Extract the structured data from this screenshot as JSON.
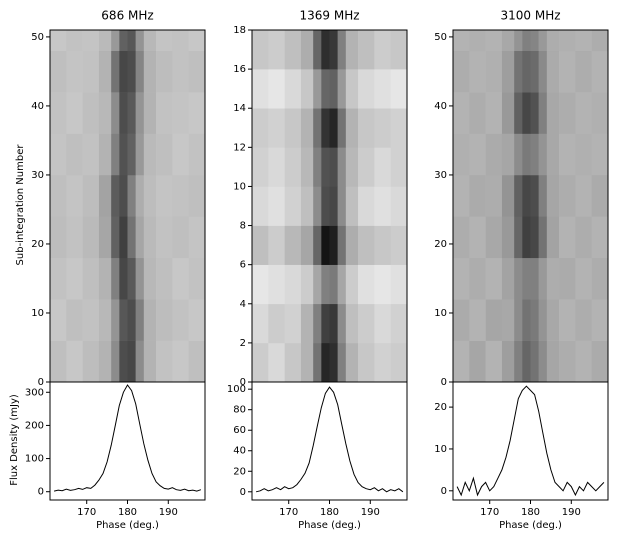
{
  "chart_data": [
    {
      "type": "heatmap",
      "title": "686 MHz",
      "ylabel": "Sub-integration Number",
      "x_edges": [
        161,
        165,
        169,
        173,
        176,
        178,
        180,
        182,
        184,
        187,
        191,
        195,
        199
      ],
      "y_edges": [
        0,
        6,
        12,
        18,
        24,
        30,
        36,
        42,
        48,
        51
      ],
      "values": [
        [
          0.25,
          0.22,
          0.26,
          0.3,
          0.45,
          0.7,
          0.72,
          0.45,
          0.3,
          0.24,
          0.22,
          0.25
        ],
        [
          0.22,
          0.25,
          0.24,
          0.28,
          0.42,
          0.66,
          0.7,
          0.5,
          0.3,
          0.26,
          0.24,
          0.22
        ],
        [
          0.24,
          0.22,
          0.25,
          0.3,
          0.5,
          0.72,
          0.65,
          0.42,
          0.28,
          0.25,
          0.22,
          0.24
        ],
        [
          0.26,
          0.24,
          0.27,
          0.35,
          0.62,
          0.75,
          0.55,
          0.35,
          0.27,
          0.24,
          0.25,
          0.23
        ],
        [
          0.25,
          0.23,
          0.26,
          0.36,
          0.64,
          0.7,
          0.5,
          0.32,
          0.26,
          0.23,
          0.24,
          0.25
        ],
        [
          0.23,
          0.25,
          0.24,
          0.3,
          0.5,
          0.68,
          0.62,
          0.4,
          0.27,
          0.25,
          0.22,
          0.24
        ],
        [
          0.24,
          0.22,
          0.25,
          0.28,
          0.45,
          0.7,
          0.65,
          0.42,
          0.3,
          0.24,
          0.23,
          0.22
        ],
        [
          0.25,
          0.23,
          0.24,
          0.3,
          0.55,
          0.72,
          0.7,
          0.48,
          0.3,
          0.26,
          0.24,
          0.25
        ],
        [
          0.22,
          0.24,
          0.23,
          0.27,
          0.4,
          0.62,
          0.66,
          0.42,
          0.28,
          0.23,
          0.24,
          0.22
        ]
      ],
      "xlim": [
        161,
        199
      ],
      "ylim": [
        0,
        51
      ],
      "yticks": [
        0,
        10,
        20,
        30,
        40,
        50
      ]
    },
    {
      "type": "line",
      "ylabel": "Flux Density (mJy)",
      "xlabel": "Phase (deg.)",
      "color": "#000000",
      "x": [
        162,
        163,
        164,
        165,
        166,
        167,
        168,
        169,
        170,
        171,
        172,
        173,
        174,
        175,
        176,
        177,
        178,
        179,
        180,
        181,
        182,
        183,
        184,
        185,
        186,
        187,
        188,
        189,
        190,
        191,
        192,
        193,
        194,
        195,
        196,
        197,
        198
      ],
      "values": [
        2,
        5,
        3,
        8,
        4,
        6,
        10,
        7,
        12,
        10,
        20,
        35,
        55,
        90,
        140,
        200,
        260,
        300,
        322,
        305,
        265,
        205,
        145,
        95,
        55,
        30,
        18,
        10,
        8,
        12,
        6,
        4,
        8,
        3,
        5,
        2,
        6
      ],
      "xlim": [
        161,
        199
      ],
      "ylim": [
        -25,
        331
      ],
      "xticks": [
        170,
        180,
        190
      ],
      "yticks": [
        0,
        100,
        200,
        300
      ]
    },
    {
      "type": "heatmap",
      "title": "1369 MHz",
      "x_edges": [
        161,
        165,
        169,
        173,
        176,
        178,
        180,
        182,
        184,
        187,
        191,
        195,
        199
      ],
      "y_edges": [
        0,
        2,
        4,
        6,
        8,
        10,
        12,
        14,
        16,
        18
      ],
      "values": [
        [
          0.2,
          0.15,
          0.22,
          0.3,
          0.55,
          0.85,
          0.82,
          0.5,
          0.3,
          0.22,
          0.18,
          0.2
        ],
        [
          0.15,
          0.2,
          0.18,
          0.3,
          0.5,
          0.75,
          0.78,
          0.45,
          0.25,
          0.2,
          0.15,
          0.18
        ],
        [
          0.1,
          0.12,
          0.15,
          0.2,
          0.35,
          0.5,
          0.52,
          0.35,
          0.2,
          0.12,
          0.1,
          0.12
        ],
        [
          0.25,
          0.2,
          0.28,
          0.35,
          0.6,
          0.92,
          0.88,
          0.55,
          0.32,
          0.25,
          0.22,
          0.2
        ],
        [
          0.15,
          0.12,
          0.18,
          0.25,
          0.45,
          0.7,
          0.72,
          0.45,
          0.25,
          0.15,
          0.12,
          0.15
        ],
        [
          0.18,
          0.15,
          0.2,
          0.28,
          0.5,
          0.68,
          0.7,
          0.45,
          0.28,
          0.2,
          0.15,
          0.18
        ],
        [
          0.2,
          0.18,
          0.22,
          0.3,
          0.55,
          0.8,
          0.85,
          0.55,
          0.3,
          0.22,
          0.2,
          0.18
        ],
        [
          0.12,
          0.1,
          0.15,
          0.22,
          0.4,
          0.6,
          0.62,
          0.4,
          0.22,
          0.15,
          0.12,
          0.1
        ],
        [
          0.22,
          0.2,
          0.25,
          0.32,
          0.6,
          0.82,
          0.78,
          0.5,
          0.3,
          0.25,
          0.2,
          0.22
        ]
      ],
      "xlim": [
        161,
        199
      ],
      "ylim": [
        0,
        18
      ],
      "yticks": [
        0,
        2,
        4,
        6,
        8,
        10,
        12,
        14,
        16,
        18
      ]
    },
    {
      "type": "line",
      "xlabel": "Phase (deg.)",
      "color": "#000000",
      "x": [
        162,
        163,
        164,
        165,
        166,
        167,
        168,
        169,
        170,
        171,
        172,
        173,
        174,
        175,
        176,
        177,
        178,
        179,
        180,
        181,
        182,
        183,
        184,
        185,
        186,
        187,
        188,
        189,
        190,
        191,
        192,
        193,
        194,
        195,
        196,
        197,
        198
      ],
      "values": [
        0,
        1,
        3,
        1,
        2,
        4,
        2,
        5,
        3,
        4,
        7,
        12,
        18,
        28,
        45,
        64,
        82,
        96,
        102,
        97,
        85,
        66,
        47,
        30,
        17,
        9,
        5,
        3,
        2,
        4,
        1,
        3,
        0,
        2,
        1,
        3,
        0
      ],
      "xlim": [
        161,
        199
      ],
      "ylim": [
        -8,
        107
      ],
      "xticks": [
        170,
        180,
        190
      ],
      "yticks": [
        0,
        20,
        40,
        60,
        80,
        100
      ]
    },
    {
      "type": "heatmap",
      "title": "3100 MHz",
      "x_edges": [
        161,
        165,
        169,
        173,
        176,
        178,
        180,
        182,
        184,
        187,
        191,
        195,
        199
      ],
      "y_edges": [
        0,
        6,
        12,
        18,
        24,
        30,
        36,
        42,
        48,
        51
      ],
      "values": [
        [
          0.3,
          0.35,
          0.3,
          0.38,
          0.5,
          0.6,
          0.55,
          0.45,
          0.35,
          0.32,
          0.3,
          0.33
        ],
        [
          0.33,
          0.3,
          0.35,
          0.34,
          0.45,
          0.55,
          0.52,
          0.42,
          0.34,
          0.3,
          0.32,
          0.3
        ],
        [
          0.3,
          0.32,
          0.3,
          0.36,
          0.45,
          0.5,
          0.5,
          0.4,
          0.32,
          0.33,
          0.3,
          0.32
        ],
        [
          0.32,
          0.3,
          0.34,
          0.4,
          0.6,
          0.75,
          0.72,
          0.55,
          0.36,
          0.3,
          0.32,
          0.3
        ],
        [
          0.3,
          0.33,
          0.32,
          0.42,
          0.62,
          0.72,
          0.7,
          0.5,
          0.35,
          0.32,
          0.3,
          0.33
        ],
        [
          0.31,
          0.3,
          0.33,
          0.35,
          0.45,
          0.52,
          0.5,
          0.42,
          0.34,
          0.3,
          0.31,
          0.3
        ],
        [
          0.3,
          0.32,
          0.3,
          0.4,
          0.62,
          0.72,
          0.68,
          0.5,
          0.34,
          0.32,
          0.3,
          0.31
        ],
        [
          0.32,
          0.3,
          0.31,
          0.38,
          0.55,
          0.6,
          0.58,
          0.46,
          0.33,
          0.3,
          0.32,
          0.3
        ],
        [
          0.3,
          0.31,
          0.3,
          0.34,
          0.42,
          0.5,
          0.48,
          0.4,
          0.32,
          0.31,
          0.3,
          0.32
        ]
      ],
      "xlim": [
        161,
        199
      ],
      "ylim": [
        0,
        51
      ],
      "yticks": [
        0,
        10,
        20,
        30,
        40,
        50
      ]
    },
    {
      "type": "line",
      "xlabel": "Phase (deg.)",
      "color": "#000000",
      "x": [
        162,
        163,
        164,
        165,
        166,
        167,
        168,
        169,
        170,
        171,
        172,
        173,
        174,
        175,
        176,
        177,
        178,
        179,
        180,
        181,
        182,
        183,
        184,
        185,
        186,
        187,
        188,
        189,
        190,
        191,
        192,
        193,
        194,
        195,
        196,
        197,
        198
      ],
      "values": [
        1,
        -1,
        2,
        0,
        3,
        -1,
        1,
        2,
        0,
        1,
        3,
        5,
        8,
        12,
        17,
        22,
        24,
        25,
        24,
        23,
        19,
        14,
        9,
        5,
        2,
        1,
        0,
        2,
        1,
        -1,
        1,
        0,
        2,
        1,
        0,
        1,
        2
      ],
      "xlim": [
        161,
        199
      ],
      "ylim": [
        -2.2,
        26
      ],
      "xticks": [
        170,
        180,
        190
      ],
      "yticks": [
        0,
        10,
        20
      ]
    }
  ]
}
